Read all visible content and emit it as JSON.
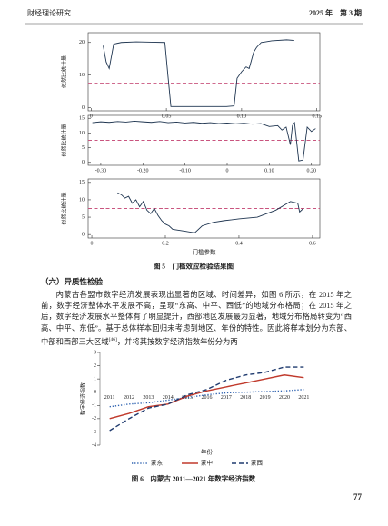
{
  "header": {
    "journal": "财经理论研究",
    "issue": "2025 年　第 3 期"
  },
  "chart_data": [
    {
      "type": "line",
      "ylabel": "似然比统计量",
      "xlim": [
        -0.002,
        0.152
      ],
      "ylim": [
        -1,
        23
      ],
      "xticks": [
        0,
        0.05,
        {
          "value": 0.1,
          "label": "0.10"
        },
        0.15
      ],
      "yticks": [
        0,
        10,
        20
      ],
      "ref_line": 7.5,
      "ref_color": "#c9557f",
      "series": [
        {
          "color": "#1f3550",
          "dash": "solid",
          "x": [
            0.008,
            0.01,
            0.012,
            0.015,
            0.02,
            0.03,
            0.04,
            0.049,
            0.051,
            0.053,
            0.07,
            0.09,
            0.095,
            0.097,
            0.1,
            0.103,
            0.105,
            0.108,
            0.11,
            0.113,
            0.116,
            0.12,
            0.13,
            0.135
          ],
          "values": [
            19,
            14,
            12,
            19.5,
            20,
            20.2,
            20.1,
            20,
            10,
            0.3,
            0.3,
            0.3,
            0.5,
            9,
            11,
            12.5,
            12,
            17,
            18.5,
            20,
            20.2,
            20.5,
            20.8,
            20.6
          ]
        }
      ]
    },
    {
      "type": "line",
      "ylabel": "似然比统计量",
      "xlim": [
        -0.33,
        0.22
      ],
      "ylim": [
        -1,
        16
      ],
      "xticks": [
        {
          "value": -0.3,
          "label": "-0.30"
        },
        {
          "value": -0.2,
          "label": "-0.20"
        },
        {
          "value": -0.1,
          "label": "-0.10"
        },
        0,
        {
          "value": 0.1,
          "label": "0.10"
        },
        {
          "value": 0.2,
          "label": "0.20"
        }
      ],
      "yticks": [
        0,
        5,
        10,
        15
      ],
      "ref_line": 7.5,
      "ref_color": "#c9557f",
      "series": [
        {
          "color": "#1f3550",
          "dash": "solid",
          "x": [
            -0.32,
            -0.3,
            -0.28,
            -0.26,
            -0.24,
            -0.22,
            -0.2,
            -0.18,
            -0.16,
            -0.14,
            -0.12,
            -0.1,
            -0.08,
            -0.06,
            -0.04,
            -0.02,
            0,
            0.02,
            0.04,
            0.06,
            0.08,
            0.1,
            0.12,
            0.13,
            0.14,
            0.15,
            0.155,
            0.16,
            0.17,
            0.18,
            0.19,
            0.2,
            0.21
          ],
          "values": [
            13.5,
            13.8,
            13.6,
            13.9,
            13.7,
            14,
            13.8,
            13.6,
            13.9,
            13.5,
            13.7,
            13.4,
            13.6,
            13.3,
            13.5,
            13.2,
            13.4,
            13.1,
            13.3,
            13,
            13.2,
            12.2,
            12.5,
            11,
            12,
            6,
            12.5,
            13.5,
            0.5,
            0.8,
            12,
            10.5,
            11.5
          ]
        }
      ]
    },
    {
      "type": "line",
      "ylabel": "似然比统计量",
      "xlabel": "门槛参数",
      "xlim": [
        -0.01,
        0.62
      ],
      "ylim": [
        -1,
        16
      ],
      "xticks": [
        0,
        0.2,
        0.4,
        0.6
      ],
      "yticks": [
        0,
        5,
        10,
        15
      ],
      "ref_line": 7.5,
      "ref_color": "#c9557f",
      "series": [
        {
          "color": "#1f3550",
          "dash": "solid",
          "x": [
            0.07,
            0.08,
            0.09,
            0.1,
            0.11,
            0.12,
            0.13,
            0.14,
            0.15,
            0.16,
            0.17,
            0.18,
            0.19,
            0.2,
            0.21,
            0.22,
            0.25,
            0.28,
            0.3,
            0.33,
            0.36,
            0.4,
            0.45,
            0.5,
            0.54,
            0.56,
            0.565,
            0.575
          ],
          "values": [
            12,
            11.5,
            10.5,
            11,
            9,
            10,
            8,
            9.5,
            7,
            6,
            7.5,
            5.5,
            4,
            3,
            2.5,
            1.5,
            1,
            0.5,
            2.5,
            3.5,
            4,
            4.5,
            5,
            7,
            9.5,
            9,
            6.5,
            7.5
          ]
        }
      ]
    },
    {
      "type": "line",
      "ylabel": "数字经济指数",
      "xlabel": "年份",
      "ylim": [
        -4,
        3
      ],
      "yticks": [
        -4,
        -3,
        -2,
        -1,
        0,
        1,
        2,
        3
      ],
      "categories": [
        "2011",
        "2012",
        "2013",
        "2014",
        "2015",
        "2016",
        "2017",
        "2018",
        "2019",
        "2020",
        "2021"
      ],
      "legend": "bottom",
      "series": [
        {
          "name": "蒙东",
          "color": "#2e62b0",
          "dash": "dotted",
          "values": [
            -1.1,
            -0.9,
            -0.8,
            -0.6,
            -0.4,
            -0.2,
            -0.05,
            0,
            0.05,
            0.1,
            0.2
          ]
        },
        {
          "name": "蒙中",
          "color": "#c0392b",
          "dash": "solid",
          "values": [
            -2,
            -1.6,
            -1.1,
            -0.9,
            -0.3,
            0.1,
            0.4,
            0.7,
            1,
            1.3,
            1.1
          ]
        },
        {
          "name": "蒙西",
          "color": "#1f3a6e",
          "dash": "dashed",
          "values": [
            -2.9,
            -2,
            -1.2,
            -0.9,
            -0.2,
            0.2,
            0.9,
            1.3,
            1.5,
            1.9,
            1.9
          ]
        }
      ]
    }
  ],
  "figure5_caption": "图 5　门槛效应检验结果图",
  "section": {
    "heading": "（六）异质性检验",
    "text_before": "内蒙古各盟市数字经济发展表现出显著的区域、时间差异，如图 6 所示，在 2015 年之前，数字经济整体水平发展不高，呈现“东高、中平、西低”的地域分布格局；在 2015 年之后，数字经济发展水平整体有了明显提升，西部地区发展最为显著，地域分布格局转变为“西高、中平、东低”。基于总体样本回归未考虑到地区、年份的特性。因此将样本划分为东部、中部和西部三大区域",
    "citation": "[46]",
    "text_after": "，并将其按数字经济指数年份分为两"
  },
  "figure6_caption": "图 6　内蒙古 2011—2021 年数字经济指数",
  "page_number": "77"
}
